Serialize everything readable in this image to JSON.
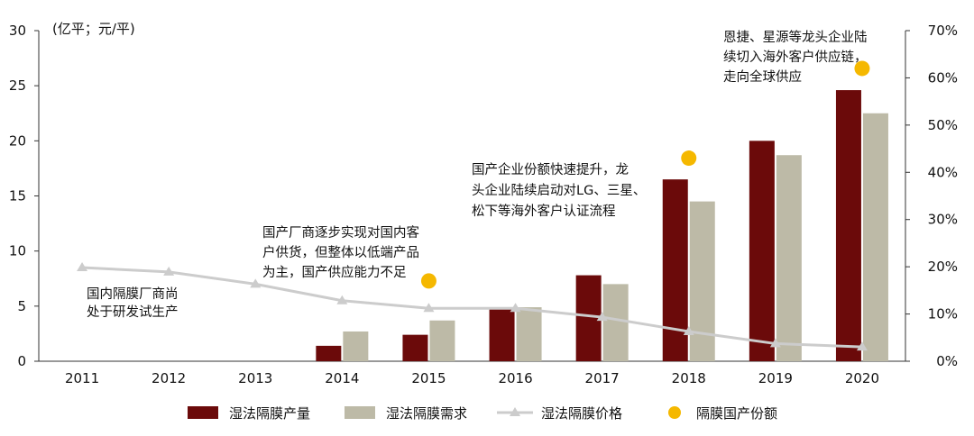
{
  "chart_data": {
    "type": "bar",
    "unit_label": "(亿平；元/平)",
    "categories": [
      "2011",
      "2012",
      "2013",
      "2014",
      "2015",
      "2016",
      "2017",
      "2018",
      "2019",
      "2020"
    ],
    "left_axis": {
      "ylim": [
        0,
        30
      ],
      "ticks": [
        "0",
        "5",
        "10",
        "15",
        "20",
        "25",
        "30"
      ]
    },
    "right_axis": {
      "ylim": [
        0,
        70
      ],
      "ticks": [
        "0%",
        "10%",
        "20%",
        "30%",
        "40%",
        "50%",
        "60%",
        "70%"
      ]
    },
    "series": [
      {
        "name": "湿法隔膜产量",
        "kind": "bar",
        "axis": "left",
        "color": "#6b0a0a",
        "values": [
          null,
          null,
          null,
          1.4,
          2.4,
          4.8,
          7.8,
          16.5,
          20.0,
          24.6
        ]
      },
      {
        "name": "湿法隔膜需求",
        "kind": "bar",
        "axis": "left",
        "color": "#bdbaa7",
        "values": [
          null,
          null,
          null,
          2.7,
          3.7,
          4.9,
          7.0,
          14.5,
          18.7,
          22.5
        ]
      },
      {
        "name": "湿法隔膜价格",
        "kind": "line",
        "axis": "left",
        "color": "#cccccc",
        "values": [
          8.5,
          8.1,
          7.0,
          5.5,
          4.8,
          4.8,
          4.0,
          2.7,
          1.6,
          1.3
        ]
      },
      {
        "name": "隔膜国产份额",
        "kind": "scatter",
        "axis": "right",
        "color": "#f5b800",
        "values": [
          null,
          null,
          null,
          null,
          17,
          null,
          null,
          43,
          null,
          62
        ]
      }
    ],
    "annotations": [
      {
        "id": "ann1",
        "lines": [
          "国内隔膜厂商尚",
          "处于研发试生产"
        ]
      },
      {
        "id": "ann2",
        "lines": [
          "国产厂商逐步实现对国内客",
          "户供货，但整体以低端产品",
          "为主，国产供应能力不足"
        ]
      },
      {
        "id": "ann3",
        "lines": [
          "国产企业份额快速提升，龙",
          "头企业陆续启动对LG、三星、",
          "松下等海外客户认证流程"
        ]
      },
      {
        "id": "ann4",
        "lines": [
          "恩捷、星源等龙头企业陆",
          "续切入海外客户供应链，",
          "走向全球供应"
        ]
      }
    ],
    "legend_position": "bottom",
    "grid": false
  }
}
